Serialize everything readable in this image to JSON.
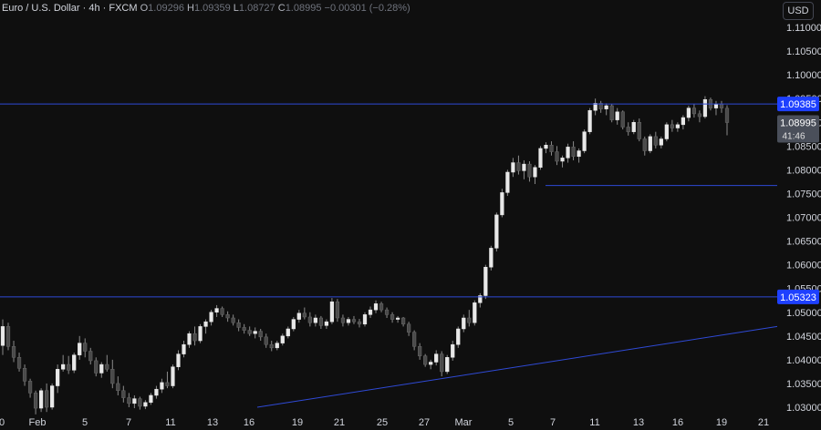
{
  "legend": {
    "symbol": "Euro / U.S. Dollar · 4h · FXCM",
    "open_label": "O",
    "open": "1.09296",
    "high_label": "H",
    "high": "1.09359",
    "low_label": "L",
    "low": "1.08727",
    "close_label": "C",
    "close": "1.08995",
    "change": "−0.00301 (−0.28%)"
  },
  "currency_button": "USD",
  "colors": {
    "background": "#0f0f0f",
    "up_candle": "#e8e8e8",
    "down_candle": "#4a4a4a",
    "wick": "#8a8a8a",
    "level_line": "#2f4ad6",
    "level_badge": "#1e40ff",
    "price_badge": "#4a4f5a",
    "axis_text": "#d1d4dc"
  },
  "chart_data": {
    "type": "candlestick",
    "y_ticks": [
      "1.11000",
      "1.10500",
      "1.10000",
      "1.09500",
      "1.09000",
      "1.08500",
      "1.08000",
      "1.07500",
      "1.07000",
      "1.06500",
      "1.06000",
      "1.05500",
      "1.05000",
      "1.04500",
      "1.04000",
      "1.03500",
      "1.03000"
    ],
    "ylim": [
      1.0275,
      1.115
    ],
    "x_ticks": [
      "0",
      "Feb",
      "5",
      "7",
      "11",
      "13",
      "16",
      "19",
      "21",
      "25",
      "27",
      "Mar",
      "5",
      "7",
      "11",
      "13",
      "16",
      "19",
      "21"
    ],
    "horizontal_levels": [
      {
        "price": 1.09385,
        "label": "1.09385"
      },
      {
        "price": 1.05323,
        "label": "1.05323"
      }
    ],
    "support_segment": {
      "price": 1.0767,
      "from": "Mar 7",
      "to": "Mar 21"
    },
    "trendline": {
      "start": {
        "date": "Feb 16",
        "price": 1.03
      },
      "end": {
        "date": "Mar 21",
        "price": 1.047
      }
    },
    "last_price": {
      "value": "1.08995",
      "countdown": "41:46"
    },
    "ohlc": [
      [
        1.043,
        1.0485,
        1.041,
        1.047
      ],
      [
        1.047,
        1.0478,
        1.042,
        1.0428
      ],
      [
        1.0428,
        1.044,
        1.0395,
        1.0405
      ],
      [
        1.0405,
        1.0415,
        1.0375,
        1.0382
      ],
      [
        1.0382,
        1.039,
        1.0345,
        1.0355
      ],
      [
        1.0355,
        1.036,
        1.032,
        1.033
      ],
      [
        1.033,
        1.0335,
        1.0285,
        1.0298
      ],
      [
        1.0298,
        1.034,
        1.029,
        1.0335
      ],
      [
        1.0335,
        1.035,
        1.029,
        1.03
      ],
      [
        1.03,
        1.035,
        1.0295,
        1.0345
      ],
      [
        1.0345,
        1.039,
        1.033,
        1.038
      ],
      [
        1.038,
        1.041,
        1.0375,
        1.039
      ],
      [
        1.039,
        1.0408,
        1.037,
        1.0378
      ],
      [
        1.0378,
        1.0415,
        1.0372,
        1.041
      ],
      [
        1.041,
        1.045,
        1.04,
        1.0435
      ],
      [
        1.0435,
        1.0445,
        1.0405,
        1.0418
      ],
      [
        1.0418,
        1.0425,
        1.039,
        1.0398
      ],
      [
        1.0398,
        1.0405,
        1.0365,
        1.0372
      ],
      [
        1.0372,
        1.0395,
        1.0362,
        1.039
      ],
      [
        1.039,
        1.041,
        1.0375,
        1.038
      ],
      [
        1.038,
        1.04,
        1.034,
        1.035
      ],
      [
        1.035,
        1.0365,
        1.0325,
        1.0335
      ],
      [
        1.0335,
        1.0345,
        1.031,
        1.032
      ],
      [
        1.032,
        1.033,
        1.03,
        1.0308
      ],
      [
        1.0308,
        1.0325,
        1.0298,
        1.0318
      ],
      [
        1.0318,
        1.0322,
        1.0295,
        1.0302
      ],
      [
        1.0302,
        1.0315,
        1.0296,
        1.031
      ],
      [
        1.031,
        1.033,
        1.0305,
        1.0325
      ],
      [
        1.0325,
        1.0345,
        1.0318,
        1.0338
      ],
      [
        1.0338,
        1.036,
        1.033,
        1.0352
      ],
      [
        1.0352,
        1.0375,
        1.034,
        1.0345
      ],
      [
        1.0345,
        1.039,
        1.034,
        1.0385
      ],
      [
        1.0385,
        1.042,
        1.0378,
        1.0412
      ],
      [
        1.0412,
        1.044,
        1.0405,
        1.0432
      ],
      [
        1.0432,
        1.046,
        1.0425,
        1.0455
      ],
      [
        1.0455,
        1.047,
        1.043,
        1.044
      ],
      [
        1.044,
        1.0475,
        1.0435,
        1.047
      ],
      [
        1.047,
        1.0485,
        1.0455,
        1.048
      ],
      [
        1.048,
        1.0505,
        1.0472,
        1.05
      ],
      [
        1.05,
        1.0515,
        1.049,
        1.0508
      ],
      [
        1.0508,
        1.0512,
        1.049,
        1.0495
      ],
      [
        1.0495,
        1.0502,
        1.048,
        1.0488
      ],
      [
        1.0488,
        1.0495,
        1.0472,
        1.0478
      ],
      [
        1.0478,
        1.0485,
        1.046,
        1.0468
      ],
      [
        1.0468,
        1.0475,
        1.0455,
        1.0462
      ],
      [
        1.0462,
        1.047,
        1.045,
        1.0455
      ],
      [
        1.0455,
        1.0468,
        1.0445,
        1.046
      ],
      [
        1.046,
        1.0465,
        1.044,
        1.0448
      ],
      [
        1.0448,
        1.0455,
        1.0425,
        1.0432
      ],
      [
        1.0432,
        1.044,
        1.0418,
        1.0425
      ],
      [
        1.0425,
        1.044,
        1.042,
        1.0435
      ],
      [
        1.0435,
        1.0455,
        1.043,
        1.045
      ],
      [
        1.045,
        1.047,
        1.0445,
        1.0465
      ],
      [
        1.0465,
        1.049,
        1.046,
        1.0485
      ],
      [
        1.0485,
        1.0505,
        1.0478,
        1.0498
      ],
      [
        1.0498,
        1.051,
        1.0485,
        1.049
      ],
      [
        1.049,
        1.05,
        1.047,
        1.0478
      ],
      [
        1.0478,
        1.0495,
        1.047,
        1.0488
      ],
      [
        1.0488,
        1.0492,
        1.0465,
        1.0472
      ],
      [
        1.0472,
        1.0485,
        1.0465,
        1.048
      ],
      [
        1.048,
        1.053,
        1.0475,
        1.0522
      ],
      [
        1.0522,
        1.0528,
        1.048,
        1.0488
      ],
      [
        1.0488,
        1.0495,
        1.047,
        1.0478
      ],
      [
        1.0478,
        1.049,
        1.0472,
        1.0485
      ],
      [
        1.0485,
        1.0492,
        1.0475,
        1.048
      ],
      [
        1.048,
        1.0486,
        1.0468,
        1.0475
      ],
      [
        1.0475,
        1.05,
        1.047,
        1.0495
      ],
      [
        1.0495,
        1.0512,
        1.0488,
        1.0505
      ],
      [
        1.0505,
        1.0525,
        1.0498,
        1.0518
      ],
      [
        1.0518,
        1.0522,
        1.05,
        1.0505
      ],
      [
        1.0505,
        1.051,
        1.0488,
        1.0495
      ],
      [
        1.0495,
        1.05,
        1.0478,
        1.0485
      ],
      [
        1.0485,
        1.0492,
        1.0478,
        1.0488
      ],
      [
        1.0488,
        1.049,
        1.047,
        1.0475
      ],
      [
        1.0475,
        1.048,
        1.045,
        1.0458
      ],
      [
        1.0458,
        1.0462,
        1.042,
        1.0428
      ],
      [
        1.0428,
        1.0435,
        1.04,
        1.0408
      ],
      [
        1.0408,
        1.0412,
        1.0385,
        1.039
      ],
      [
        1.039,
        1.04,
        1.038,
        1.0395
      ],
      [
        1.0395,
        1.042,
        1.0388,
        1.0412
      ],
      [
        1.0412,
        1.0418,
        1.0365,
        1.0375
      ],
      [
        1.0375,
        1.041,
        1.037,
        1.0405
      ],
      [
        1.0405,
        1.044,
        1.0398,
        1.0432
      ],
      [
        1.0432,
        1.047,
        1.0425,
        1.0465
      ],
      [
        1.0465,
        1.0495,
        1.0458,
        1.0488
      ],
      [
        1.0488,
        1.0505,
        1.047,
        1.0478
      ],
      [
        1.0478,
        1.0525,
        1.0472,
        1.052
      ],
      [
        1.052,
        1.054,
        1.051,
        1.0535
      ],
      [
        1.0535,
        1.06,
        1.0528,
        1.0595
      ],
      [
        1.0595,
        1.064,
        1.0588,
        1.0635
      ],
      [
        1.0635,
        1.071,
        1.0628,
        1.0705
      ],
      [
        1.0705,
        1.076,
        1.07,
        1.0752
      ],
      [
        1.0752,
        1.08,
        1.0745,
        1.0795
      ],
      [
        1.0795,
        1.0825,
        1.0785,
        1.0815
      ],
      [
        1.0815,
        1.083,
        1.079,
        1.0798
      ],
      [
        1.0798,
        1.082,
        1.078,
        1.0812
      ],
      [
        1.0812,
        1.0818,
        1.0775,
        1.0785
      ],
      [
        1.0785,
        1.081,
        1.077,
        1.0805
      ],
      [
        1.0805,
        1.085,
        1.08,
        1.0845
      ],
      [
        1.0845,
        1.0858,
        1.0835,
        1.0852
      ],
      [
        1.0852,
        1.086,
        1.083,
        1.0838
      ],
      [
        1.0838,
        1.085,
        1.081,
        1.0818
      ],
      [
        1.0818,
        1.083,
        1.0805,
        1.0825
      ],
      [
        1.0825,
        1.0855,
        1.0815,
        1.0848
      ],
      [
        1.0848,
        1.086,
        1.082,
        1.0828
      ],
      [
        1.0828,
        1.0845,
        1.0815,
        1.084
      ],
      [
        1.084,
        1.0885,
        1.0835,
        1.088
      ],
      [
        1.088,
        1.093,
        1.0875,
        1.0925
      ],
      [
        1.0925,
        1.095,
        1.0915,
        1.094
      ],
      [
        1.094,
        1.0945,
        1.092,
        1.0928
      ],
      [
        1.0928,
        1.094,
        1.0915,
        1.0935
      ],
      [
        1.0935,
        1.0938,
        1.09,
        1.0905
      ],
      [
        1.0905,
        1.093,
        1.0895,
        1.0922
      ],
      [
        1.0922,
        1.0925,
        1.0885,
        1.089
      ],
      [
        1.089,
        1.09,
        1.0872,
        1.088
      ],
      [
        1.088,
        1.0905,
        1.0875,
        1.09
      ],
      [
        1.09,
        1.0908,
        1.086,
        1.0865
      ],
      [
        1.0865,
        1.087,
        1.083,
        1.084
      ],
      [
        1.084,
        1.0875,
        1.0835,
        1.087
      ],
      [
        1.087,
        1.088,
        1.0845,
        1.0852
      ],
      [
        1.0852,
        1.087,
        1.0845,
        1.0865
      ],
      [
        1.0865,
        1.09,
        1.086,
        1.0895
      ],
      [
        1.0895,
        1.0905,
        1.088,
        1.0888
      ],
      [
        1.0888,
        1.09,
        1.088,
        1.0895
      ],
      [
        1.0895,
        1.0915,
        1.0885,
        1.091
      ],
      [
        1.091,
        1.0935,
        1.0902,
        1.093
      ],
      [
        1.093,
        1.0938,
        1.091,
        1.0918
      ],
      [
        1.0918,
        1.0925,
        1.09,
        1.0912
      ],
      [
        1.0912,
        1.0955,
        1.0908,
        1.0948
      ],
      [
        1.0948,
        1.0952,
        1.0925,
        1.093
      ],
      [
        1.093,
        1.0945,
        1.0915,
        1.0938
      ],
      [
        1.0938,
        1.0945,
        1.092,
        1.093
      ],
      [
        1.09296,
        1.09359,
        1.08727,
        1.08995
      ]
    ]
  }
}
